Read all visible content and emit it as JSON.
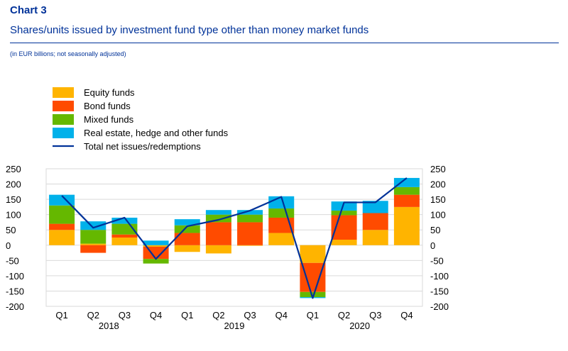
{
  "header": {
    "label": "Chart 3",
    "title": "Shares/units issued by investment fund type other than money market funds",
    "unit": "(in EUR billions; not seasonally adjusted)"
  },
  "chart_data": {
    "type": "bar",
    "stacked": true,
    "categories": [
      "Q1",
      "Q2",
      "Q3",
      "Q4",
      "Q1",
      "Q2",
      "Q3",
      "Q4",
      "Q1",
      "Q2",
      "Q3",
      "Q4"
    ],
    "year_groups": [
      {
        "label": "2018",
        "span": [
          0,
          3
        ]
      },
      {
        "label": "2019",
        "span": [
          4,
          7
        ]
      },
      {
        "label": "2020",
        "span": [
          8,
          11
        ]
      }
    ],
    "series": [
      {
        "name": "Equity funds",
        "color": "#ffb400",
        "values": [
          50,
          5,
          25,
          -5,
          -22,
          -27,
          -2,
          40,
          -58,
          18,
          50,
          125
        ]
      },
      {
        "name": "Bond funds",
        "color": "#ff4b00",
        "values": [
          20,
          -25,
          10,
          -40,
          40,
          75,
          75,
          50,
          -95,
          80,
          55,
          40
        ]
      },
      {
        "name": "Mixed funds",
        "color": "#65b800",
        "values": [
          60,
          45,
          35,
          -15,
          25,
          25,
          25,
          30,
          -17,
          15,
          0,
          25
        ]
      },
      {
        "name": "Real estate, hedge and other funds",
        "color": "#00b1ea",
        "values": [
          35,
          28,
          20,
          15,
          20,
          15,
          15,
          40,
          -3,
          30,
          40,
          30
        ]
      }
    ],
    "line": {
      "name": "Total net issues/redemptions",
      "color": "#003299",
      "values": [
        162,
        57,
        90,
        -45,
        62,
        83,
        113,
        158,
        -173,
        140,
        140,
        220
      ]
    },
    "y_ticks": [
      250,
      200,
      150,
      100,
      50,
      0,
      -50,
      -100,
      -150,
      -200
    ],
    "y_tick_labels": [
      "250",
      "200",
      "150",
      "100",
      "50",
      "0",
      "-50",
      "-100",
      "-150",
      "-200"
    ],
    "ylim": [
      -200,
      250
    ],
    "grid": true,
    "legend_position": "top-left"
  }
}
